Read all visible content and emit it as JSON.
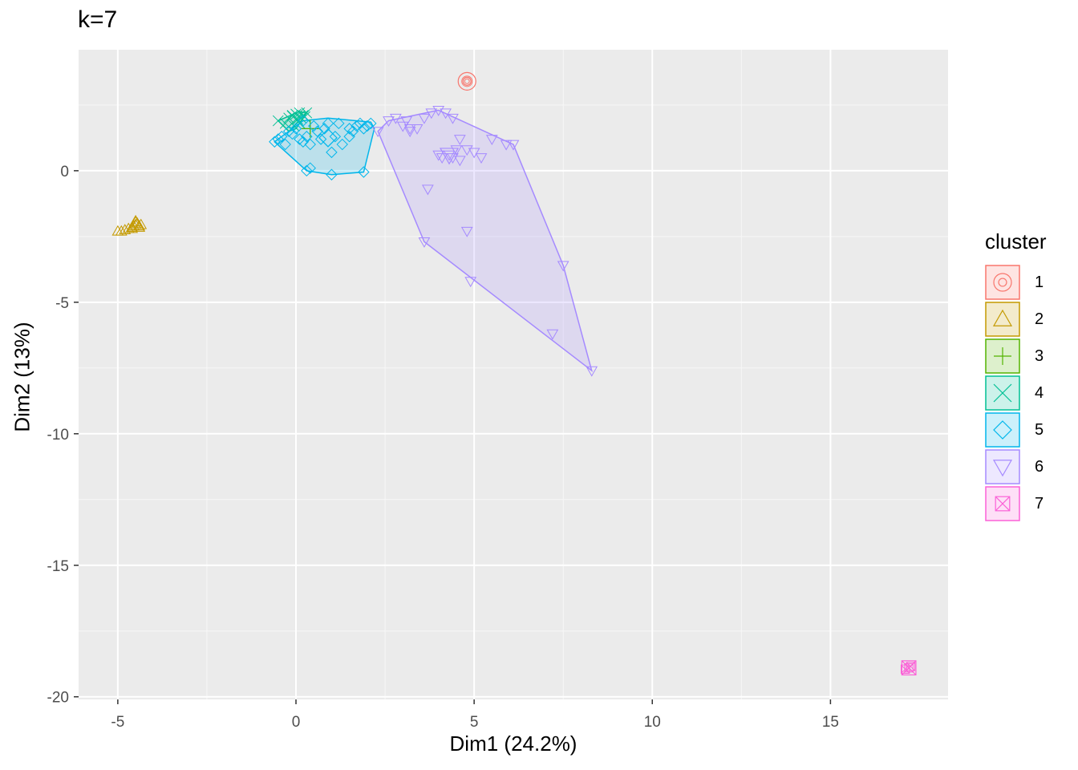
{
  "chart_data": {
    "type": "scatter",
    "title": "k=7",
    "xlabel": "Dim1 (24.2%)",
    "ylabel": "Dim2 (13%)",
    "xlim": [
      -6.1,
      18.3
    ],
    "ylim": [
      -20.1,
      4.6
    ],
    "x_ticks": [
      -5,
      0,
      5,
      10,
      15
    ],
    "x_tick_labels": [
      "-5",
      "0",
      "5",
      "10",
      "15"
    ],
    "y_ticks": [
      0,
      -5,
      -10,
      -15,
      -20
    ],
    "y_tick_labels": [
      "0",
      "-5",
      "-10",
      "-15",
      "-20"
    ],
    "grid": true,
    "legend_title": "cluster",
    "legend_position": "right",
    "series": [
      {
        "name": "1",
        "color": "#F8766D",
        "shape": "circle-dot",
        "points": [
          [
            4.8,
            3.4
          ]
        ],
        "centroid": [
          4.8,
          3.4
        ]
      },
      {
        "name": "2",
        "color": "#C49A00",
        "shape": "triangle-up",
        "points": [
          [
            -5.0,
            -2.3
          ],
          [
            -4.9,
            -2.3
          ],
          [
            -4.8,
            -2.25
          ],
          [
            -4.7,
            -2.2
          ],
          [
            -4.6,
            -2.15
          ],
          [
            -4.55,
            -2.1
          ],
          [
            -4.5,
            -2.05
          ],
          [
            -4.45,
            -2.0
          ],
          [
            -4.4,
            -2.1
          ],
          [
            -4.5,
            -1.95
          ],
          [
            -4.6,
            -2.2
          ],
          [
            -4.35,
            -2.05
          ]
        ],
        "centroid": [
          -4.5,
          -2.05
        ]
      },
      {
        "name": "3",
        "color": "#53B400",
        "shape": "plus",
        "points": [
          [
            0.4,
            1.6
          ]
        ],
        "centroid": [
          0.4,
          1.6
        ]
      },
      {
        "name": "4",
        "color": "#00C094",
        "shape": "cross",
        "points": [
          [
            -0.5,
            1.9
          ],
          [
            -0.3,
            1.8
          ],
          [
            -0.2,
            2.0
          ],
          [
            -0.1,
            2.1
          ],
          [
            0.0,
            2.15
          ],
          [
            0.1,
            2.2
          ],
          [
            0.2,
            2.1
          ],
          [
            0.3,
            2.2
          ],
          [
            0.05,
            1.95
          ],
          [
            -0.05,
            1.7
          ],
          [
            0.15,
            2.0
          ],
          [
            0.25,
            2.05
          ]
        ],
        "centroid": [
          0.0,
          1.95
        ]
      },
      {
        "name": "5",
        "color": "#00B6EB",
        "shape": "diamond",
        "points": [
          [
            -0.6,
            1.1
          ],
          [
            -0.5,
            1.2
          ],
          [
            -0.4,
            1.3
          ],
          [
            -0.3,
            1.0
          ],
          [
            -0.2,
            1.5
          ],
          [
            -0.1,
            1.4
          ],
          [
            0.0,
            1.6
          ],
          [
            0.1,
            1.2
          ],
          [
            0.2,
            1.1
          ],
          [
            0.3,
            1.3
          ],
          [
            0.4,
            1.0
          ],
          [
            0.5,
            1.7
          ],
          [
            0.6,
            1.5
          ],
          [
            0.8,
            1.6
          ],
          [
            0.9,
            1.8
          ],
          [
            1.0,
            0.7
          ],
          [
            1.1,
            1.3
          ],
          [
            1.3,
            1.0
          ],
          [
            1.5,
            1.6
          ],
          [
            1.6,
            1.5
          ],
          [
            1.7,
            1.7
          ],
          [
            1.8,
            1.8
          ],
          [
            1.9,
            1.6
          ],
          [
            2.0,
            1.7
          ],
          [
            2.1,
            1.8
          ],
          [
            1.9,
            -0.05
          ],
          [
            1.0,
            -0.15
          ],
          [
            0.4,
            0.1
          ],
          [
            0.3,
            0.0
          ],
          [
            1.5,
            1.3
          ],
          [
            0.7,
            1.2
          ],
          [
            0.2,
            1.9
          ],
          [
            1.2,
            1.8
          ]
        ],
        "centroid": [
          0.9,
          1.25
        ]
      },
      {
        "name": "6",
        "color": "#A58AFF",
        "shape": "triangle-down",
        "points": [
          [
            2.3,
            1.5
          ],
          [
            2.6,
            1.9
          ],
          [
            2.8,
            2.0
          ],
          [
            3.0,
            1.7
          ],
          [
            3.2,
            1.5
          ],
          [
            3.4,
            1.6
          ],
          [
            3.6,
            2.0
          ],
          [
            3.8,
            2.2
          ],
          [
            4.0,
            2.3
          ],
          [
            4.2,
            2.2
          ],
          [
            4.4,
            2.0
          ],
          [
            4.6,
            1.2
          ],
          [
            4.8,
            0.8
          ],
          [
            5.0,
            0.7
          ],
          [
            5.2,
            0.5
          ],
          [
            5.5,
            1.2
          ],
          [
            5.9,
            1.0
          ],
          [
            6.1,
            1.0
          ],
          [
            4.1,
            0.5
          ],
          [
            4.4,
            0.5
          ],
          [
            4.6,
            0.4
          ],
          [
            3.7,
            -0.7
          ],
          [
            3.6,
            -2.7
          ],
          [
            4.8,
            -2.3
          ],
          [
            4.9,
            -4.2
          ],
          [
            7.5,
            -3.6
          ],
          [
            7.2,
            -6.2
          ],
          [
            8.3,
            -7.6
          ],
          [
            3.1,
            1.9
          ],
          [
            4.3,
            0.6
          ],
          [
            4.0,
            0.6
          ],
          [
            3.2,
            1.6
          ],
          [
            4.5,
            0.8
          ]
        ],
        "centroid": [
          4.3,
          0.6
        ]
      },
      {
        "name": "7",
        "color": "#FB61D7",
        "shape": "square-cross",
        "points": [
          [
            17.2,
            -18.9
          ],
          [
            17.1,
            -18.95
          ],
          [
            17.25,
            -18.85
          ]
        ],
        "centroid": [
          17.2,
          -18.9
        ]
      }
    ],
    "hulls": [
      {
        "cluster": "4",
        "points": [
          [
            -0.5,
            1.9
          ],
          [
            0.1,
            2.25
          ],
          [
            0.3,
            2.2
          ],
          [
            0.0,
            1.6
          ],
          [
            -0.2,
            1.5
          ]
        ]
      },
      {
        "cluster": "5",
        "points": [
          [
            -0.6,
            1.1
          ],
          [
            0.3,
            0.0
          ],
          [
            1.0,
            -0.15
          ],
          [
            1.9,
            -0.05
          ],
          [
            2.2,
            1.6
          ],
          [
            2.1,
            1.85
          ],
          [
            0.9,
            2.0
          ],
          [
            0.2,
            1.9
          ]
        ]
      },
      {
        "cluster": "6",
        "points": [
          [
            2.3,
            1.5
          ],
          [
            3.6,
            -2.7
          ],
          [
            8.3,
            -7.6
          ],
          [
            7.5,
            -3.6
          ],
          [
            6.1,
            1.0
          ],
          [
            4.0,
            2.3
          ],
          [
            2.6,
            1.9
          ]
        ]
      }
    ]
  }
}
